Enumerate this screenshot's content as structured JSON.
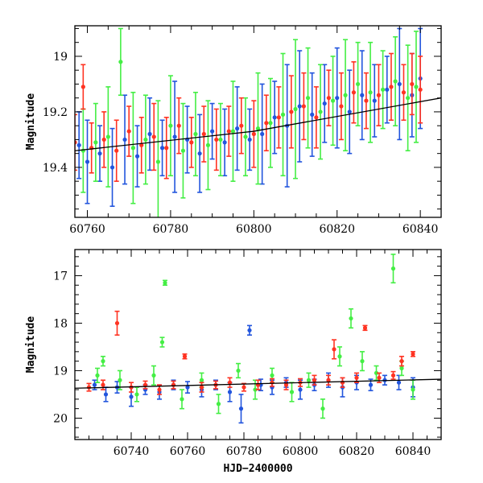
{
  "chart_data": [
    {
      "type": "scatter",
      "title": "",
      "xlabel": "",
      "ylabel": "Magnitude",
      "xlim": [
        60757,
        60845
      ],
      "ylim": [
        19.58,
        18.89
      ],
      "y_inverted": true,
      "x_major_ticks": [
        60760,
        60780,
        60800,
        60820,
        60840
      ],
      "x_tick_labels": [
        "60760",
        "60780",
        "60800",
        "60820",
        "60840"
      ],
      "y_major_ticks": [
        19.0,
        19.2,
        19.4
      ],
      "y_tick_labels": [
        "19",
        "19.2",
        "19.4"
      ],
      "grid": false,
      "legend": "none",
      "series": [
        {
          "color": "#2255dd",
          "x": [
            60758,
            60760,
            60763,
            60766,
            60769,
            60772,
            60775,
            60778,
            60781,
            60784,
            60787,
            60790,
            60793,
            60796,
            60799,
            60802,
            60805,
            60808,
            60811,
            60814,
            60817,
            60820,
            60823,
            60826,
            60829,
            60832,
            60835,
            60838,
            60840
          ],
          "y": [
            19.32,
            19.38,
            19.35,
            19.4,
            19.3,
            19.36,
            19.28,
            19.33,
            19.29,
            19.3,
            19.35,
            19.27,
            19.31,
            19.26,
            19.3,
            19.28,
            19.22,
            19.25,
            19.18,
            19.21,
            19.17,
            19.15,
            19.2,
            19.14,
            19.16,
            19.12,
            19.1,
            19.14,
            19.08
          ],
          "err": [
            0.12,
            0.15,
            0.1,
            0.14,
            0.16,
            0.11,
            0.13,
            0.1,
            0.2,
            0.12,
            0.14,
            0.1,
            0.12,
            0.15,
            0.11,
            0.18,
            0.13,
            0.22,
            0.2,
            0.15,
            0.14,
            0.18,
            0.15,
            0.16,
            0.13,
            0.12,
            0.2,
            0.15,
            0.18
          ]
        },
        {
          "color": "#44ee44",
          "x": [
            60759,
            60762,
            60765,
            60768,
            60771,
            60774,
            60777,
            60780,
            60783,
            60786,
            60789,
            60792,
            60795,
            60798,
            60801,
            60804,
            60807,
            60810,
            60813,
            60816,
            60819,
            60822,
            60825,
            60828,
            60831,
            60834,
            60837,
            60839
          ],
          "y": [
            19.34,
            19.31,
            19.29,
            19.02,
            19.33,
            19.3,
            19.38,
            19.25,
            19.34,
            19.28,
            19.32,
            19.3,
            19.27,
            19.29,
            19.26,
            19.24,
            19.21,
            19.19,
            19.15,
            19.2,
            19.16,
            19.14,
            19.1,
            19.13,
            19.12,
            19.09,
            19.15,
            19.11
          ],
          "err": [
            0.15,
            0.14,
            0.18,
            0.12,
            0.2,
            0.16,
            0.22,
            0.18,
            0.17,
            0.15,
            0.16,
            0.13,
            0.18,
            0.14,
            0.2,
            0.16,
            0.22,
            0.25,
            0.18,
            0.17,
            0.16,
            0.2,
            0.15,
            0.18,
            0.14,
            0.16,
            0.19,
            0.2
          ]
        },
        {
          "color": "#ff3322",
          "x": [
            60757,
            60759,
            60761,
            60764,
            60767,
            60770,
            60773,
            60776,
            60779,
            60782,
            60785,
            60788,
            60791,
            60794,
            60797,
            60800,
            60803,
            60806,
            60809,
            60812,
            60815,
            60818,
            60821,
            60824,
            60827,
            60830,
            60833,
            60836,
            60838,
            60840
          ],
          "y": [
            19.31,
            19.11,
            19.33,
            19.3,
            19.34,
            19.27,
            19.32,
            19.29,
            19.33,
            19.25,
            19.31,
            19.28,
            19.3,
            19.27,
            19.25,
            19.28,
            19.24,
            19.22,
            19.2,
            19.18,
            19.22,
            19.15,
            19.18,
            19.13,
            19.16,
            19.14,
            19.11,
            19.13,
            19.1,
            19.12
          ],
          "err": [
            0.1,
            0.08,
            0.09,
            0.1,
            0.11,
            0.09,
            0.1,
            0.12,
            0.11,
            0.1,
            0.09,
            0.1,
            0.11,
            0.09,
            0.1,
            0.12,
            0.1,
            0.11,
            0.13,
            0.12,
            0.11,
            0.1,
            0.12,
            0.11,
            0.1,
            0.11,
            0.12,
            0.1,
            0.11,
            0.12
          ]
        }
      ],
      "trend_line": {
        "color": "#000000",
        "x": [
          60757,
          60800,
          60845
        ],
        "y": [
          19.34,
          19.27,
          19.15
        ]
      }
    },
    {
      "type": "scatter",
      "title": "",
      "xlabel": "HJD−2400000",
      "ylabel": "Magnitude",
      "xlim": [
        60720,
        60850
      ],
      "ylim": [
        20.45,
        16.45
      ],
      "y_inverted": true,
      "x_major_ticks": [
        60740,
        60760,
        60780,
        60800,
        60820,
        60840
      ],
      "x_tick_labels": [
        "60740",
        "60760",
        "60780",
        "60800",
        "60820",
        "60840"
      ],
      "y_major_ticks": [
        17,
        18,
        19,
        20
      ],
      "y_tick_labels": [
        "17",
        "18",
        "19",
        "20"
      ],
      "grid": false,
      "legend": "none",
      "series": [
        {
          "color": "#2255dd",
          "x": [
            60727,
            60731,
            60735,
            60740,
            60745,
            60750,
            60755,
            60760,
            60765,
            60770,
            60775,
            60779,
            60782,
            60786,
            60790,
            60795,
            60800,
            60805,
            60810,
            60815,
            60820,
            60825,
            60830,
            60835,
            60840
          ],
          "y": [
            19.3,
            19.5,
            19.35,
            19.55,
            19.4,
            19.45,
            19.3,
            19.35,
            19.4,
            19.3,
            19.45,
            19.8,
            18.15,
            19.3,
            19.35,
            19.25,
            19.4,
            19.3,
            19.2,
            19.35,
            19.25,
            19.3,
            19.2,
            19.25,
            19.35
          ],
          "err": [
            0.1,
            0.15,
            0.12,
            0.2,
            0.1,
            0.15,
            0.1,
            0.12,
            0.15,
            0.1,
            0.2,
            0.3,
            0.1,
            0.12,
            0.15,
            0.1,
            0.2,
            0.12,
            0.15,
            0.2,
            0.15,
            0.12,
            0.1,
            0.15,
            0.2
          ]
        },
        {
          "color": "#44ee44",
          "x": [
            60728,
            60730,
            60736,
            60742,
            60748,
            60751,
            60752,
            60758,
            60765,
            60771,
            60778,
            60784,
            60790,
            60797,
            60803,
            60808,
            60814,
            60818,
            60822,
            60827,
            60833,
            60836,
            60840
          ],
          "y": [
            19.1,
            18.8,
            19.2,
            19.5,
            19.1,
            18.4,
            17.15,
            19.6,
            19.2,
            19.7,
            19.0,
            19.4,
            19.1,
            19.45,
            19.2,
            19.8,
            18.7,
            17.9,
            18.8,
            19.05,
            16.85,
            18.95,
            19.4
          ],
          "err": [
            0.15,
            0.1,
            0.2,
            0.15,
            0.2,
            0.1,
            0.05,
            0.2,
            0.15,
            0.2,
            0.15,
            0.2,
            0.15,
            0.2,
            0.15,
            0.2,
            0.2,
            0.2,
            0.2,
            0.15,
            0.3,
            0.15,
            0.2
          ]
        },
        {
          "color": "#ff3322",
          "x": [
            60725,
            60730,
            60735,
            60740,
            60745,
            60750,
            60755,
            60759,
            60765,
            60770,
            60775,
            60780,
            60785,
            60790,
            60795,
            60800,
            60805,
            60810,
            60812,
            60815,
            60820,
            60823,
            60828,
            60833,
            60836,
            60840
          ],
          "y": [
            19.35,
            19.3,
            18.0,
            19.35,
            19.3,
            19.4,
            19.3,
            18.7,
            19.35,
            19.3,
            19.25,
            19.35,
            19.3,
            19.25,
            19.3,
            19.25,
            19.2,
            19.2,
            18.55,
            19.25,
            19.15,
            18.1,
            19.15,
            19.1,
            18.8,
            18.65
          ],
          "err": [
            0.08,
            0.1,
            0.25,
            0.1,
            0.08,
            0.1,
            0.08,
            0.05,
            0.1,
            0.08,
            0.1,
            0.08,
            0.1,
            0.08,
            0.1,
            0.08,
            0.1,
            0.1,
            0.2,
            0.1,
            0.1,
            0.05,
            0.1,
            0.08,
            0.1,
            0.05
          ]
        }
      ],
      "trend_line": {
        "color": "#000000",
        "x": [
          60720,
          60850
        ],
        "y": [
          19.37,
          19.18
        ]
      }
    }
  ]
}
